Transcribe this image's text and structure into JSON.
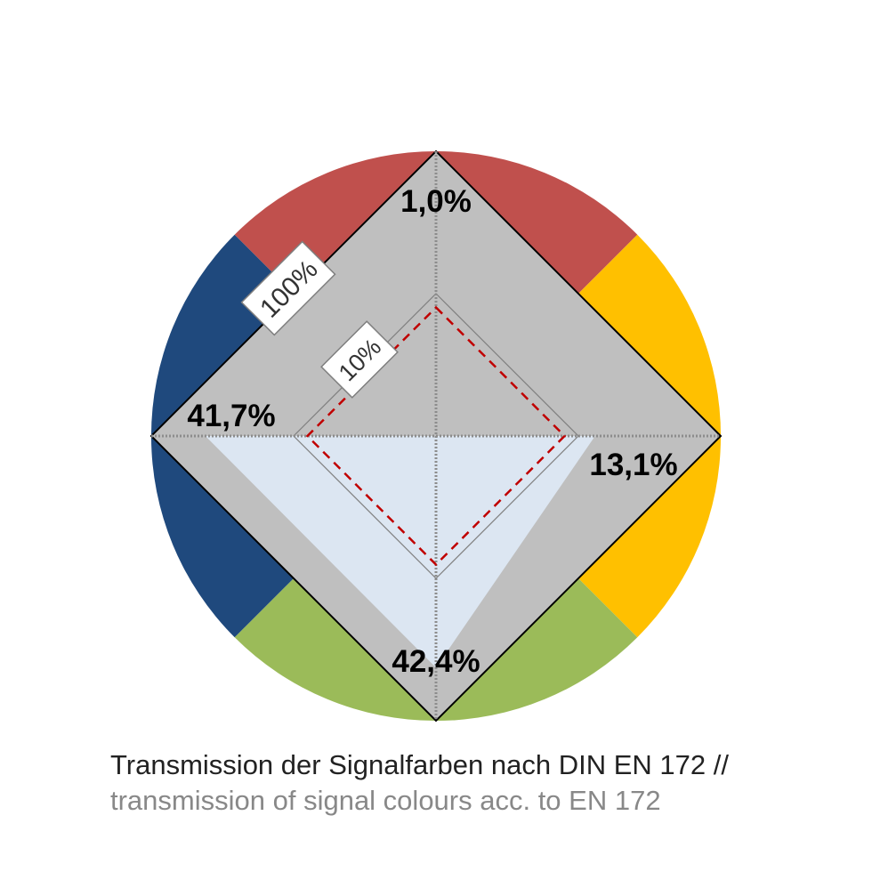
{
  "chart_data": {
    "type": "radar",
    "scale": "log",
    "axes": [
      "red",
      "yellow",
      "green",
      "blue"
    ],
    "values": [
      1.0,
      13.1,
      42.4,
      41.7
    ],
    "value_labels": [
      "1,0%",
      "13,1%",
      "42,4%",
      "41,7%"
    ],
    "rmin": 1,
    "rmax": 100,
    "ring_values": [
      10,
      100
    ],
    "ring_labels": [
      "10%",
      "100%"
    ],
    "threshold_values": [
      8,
      8,
      8,
      8
    ],
    "colors": {
      "red": "#c0504d",
      "yellow": "#ffc000",
      "green": "#9bbb59",
      "blue": "#1f497d",
      "diamond": "#bfbfbf",
      "fill": "#dce6f2",
      "threshold": "#c00000"
    }
  },
  "caption": {
    "de": "Transmission der Signalfarben nach DIN EN 172 //",
    "en": "transmission of signal colours acc. to EN 172"
  }
}
